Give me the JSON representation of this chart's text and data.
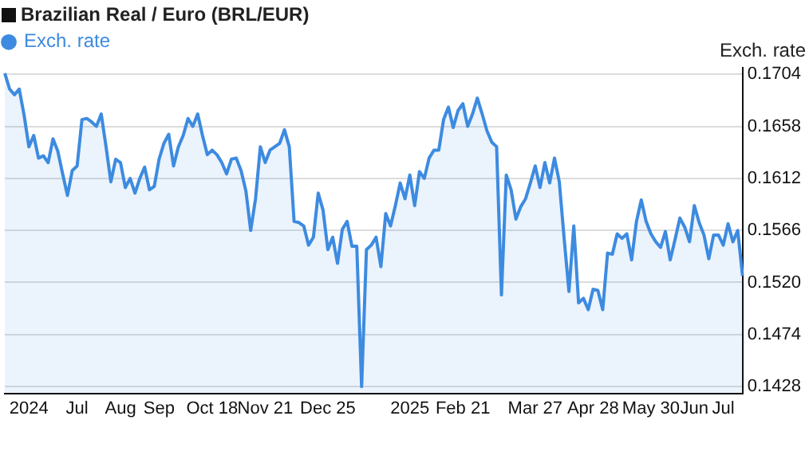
{
  "chart_data": {
    "type": "area",
    "title": "Brazilian Real / Euro (BRL/EUR)",
    "ylabel": "Exch. rate",
    "categories": [
      null,
      null,
      null,
      null,
      null,
      "2024",
      null,
      null,
      null,
      null,
      null,
      null,
      null,
      null,
      null,
      "Jul",
      null,
      null,
      null,
      null,
      null,
      null,
      null,
      null,
      "Aug",
      null,
      null,
      null,
      null,
      null,
      null,
      null,
      "Sep",
      null,
      null,
      null,
      null,
      null,
      null,
      null,
      null,
      null,
      null,
      "Oct 18",
      null,
      null,
      null,
      null,
      null,
      null,
      null,
      null,
      null,
      null,
      "Nov 21",
      null,
      null,
      null,
      null,
      null,
      null,
      null,
      null,
      null,
      null,
      null,
      null,
      "Dec 25",
      null,
      null,
      null,
      null,
      null,
      null,
      null,
      null,
      null,
      null,
      null,
      null,
      null,
      null,
      null,
      null,
      "2025",
      null,
      null,
      null,
      null,
      null,
      null,
      null,
      null,
      null,
      null,
      "Feb 21",
      null,
      null,
      null,
      null,
      null,
      null,
      null,
      null,
      null,
      null,
      null,
      null,
      null,
      null,
      "Mar 27",
      null,
      null,
      null,
      null,
      null,
      null,
      null,
      null,
      null,
      null,
      null,
      "Apr 28",
      null,
      null,
      null,
      null,
      null,
      null,
      null,
      null,
      null,
      null,
      null,
      "May 30",
      null,
      null,
      null,
      null,
      null,
      null,
      null,
      null,
      "Jun",
      null,
      null,
      null,
      null,
      null,
      "Jul",
      null,
      null,
      null,
      null
    ],
    "series": [
      {
        "name": "Exch. rate",
        "color": "#3d8be0",
        "values": [
          0.1705,
          0.1691,
          0.1686,
          0.1691,
          0.1668,
          0.164,
          0.165,
          0.163,
          0.1632,
          0.1626,
          0.1647,
          0.1636,
          0.1616,
          0.1597,
          0.1619,
          0.1623,
          0.1664,
          0.1665,
          0.1662,
          0.1658,
          0.1669,
          0.164,
          0.1609,
          0.1629,
          0.1626,
          0.1604,
          0.1612,
          0.1599,
          0.1612,
          0.1622,
          0.1602,
          0.1605,
          0.1629,
          0.1643,
          0.1651,
          0.1623,
          0.164,
          0.165,
          0.1665,
          0.1658,
          0.1669,
          0.165,
          0.1633,
          0.1637,
          0.1633,
          0.1626,
          0.1616,
          0.1629,
          0.163,
          0.1619,
          0.1601,
          0.1566,
          0.1594,
          0.164,
          0.1626,
          0.1637,
          0.164,
          0.1643,
          0.1655,
          0.164,
          0.1574,
          0.1573,
          0.157,
          0.1553,
          0.156,
          0.1599,
          0.1584,
          0.1549,
          0.156,
          0.1537,
          0.1567,
          0.1574,
          0.1552,
          0.1552,
          0.1428,
          0.1549,
          0.1553,
          0.156,
          0.1534,
          0.1581,
          0.157,
          0.1588,
          0.1608,
          0.1594,
          0.1615,
          0.1588,
          0.1618,
          0.1612,
          0.163,
          0.1637,
          0.1637,
          0.1664,
          0.1675,
          0.1657,
          0.1672,
          0.1678,
          0.1658,
          0.1669,
          0.1683,
          0.1669,
          0.1654,
          0.1644,
          0.164,
          0.1509,
          0.1615,
          0.1602,
          0.1576,
          0.1587,
          0.1594,
          0.1608,
          0.1623,
          0.1604,
          0.1626,
          0.1608,
          0.163,
          0.1609,
          0.1559,
          0.1512,
          0.157,
          0.1502,
          0.1506,
          0.1496,
          0.1514,
          0.1513,
          0.1496,
          0.1546,
          0.1545,
          0.1563,
          0.1559,
          0.1563,
          0.154,
          0.1574,
          0.1593,
          0.1574,
          0.1563,
          0.1556,
          0.1551,
          0.1565,
          0.154,
          0.1558,
          0.1577,
          0.1569,
          0.1556,
          0.1588,
          0.1573,
          0.1562,
          0.1541,
          0.1562,
          0.1562,
          0.1553,
          0.1572,
          0.1556,
          0.1566,
          0.1526
        ]
      }
    ],
    "ylim": [
      0.1422,
      0.171
    ],
    "yticks": [
      0.1428,
      0.1474,
      {
        "value": 0.152,
        "label": "0.1520"
      },
      0.1566,
      0.1612,
      0.1658,
      0.1704
    ],
    "grid": "y",
    "legend": "top left",
    "marker": "none",
    "line_style": "solid"
  }
}
